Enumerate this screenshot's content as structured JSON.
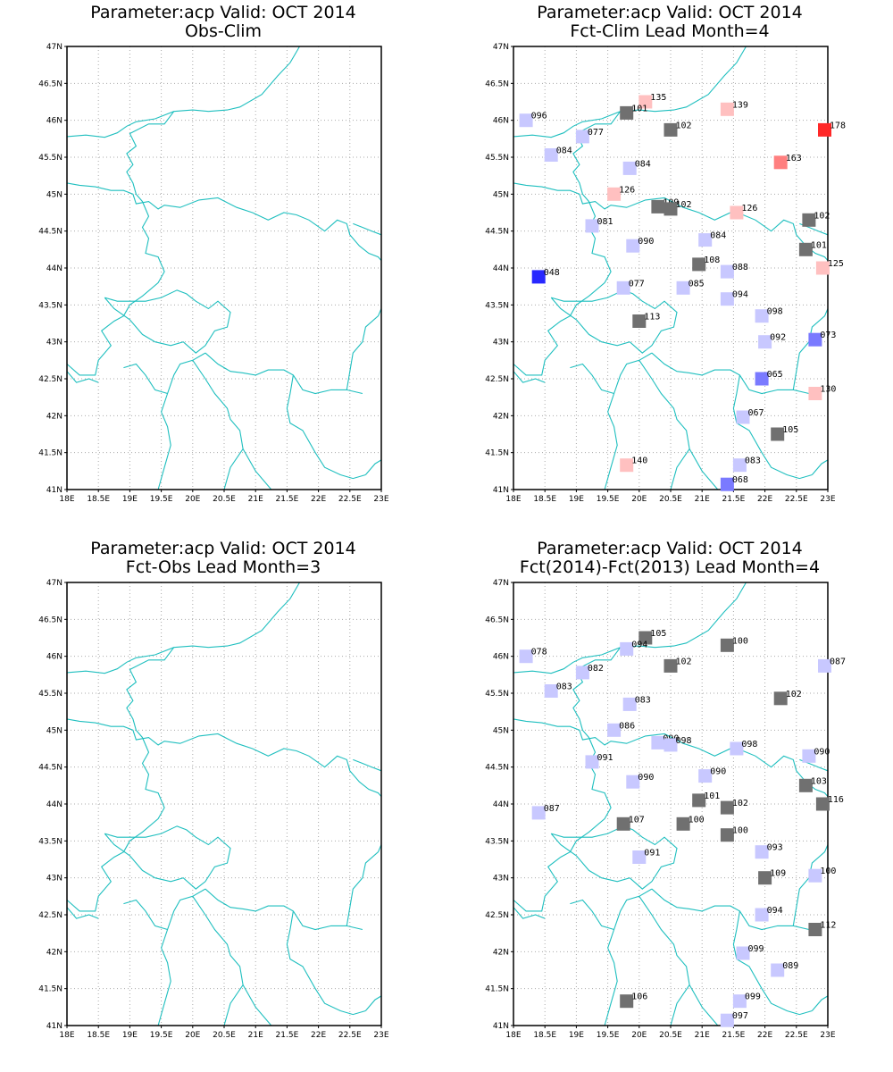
{
  "colors": {
    "border": "#1fbfbf",
    "grid": "#aaaaaa",
    "gray": "#707070",
    "light_blue": "#c8c8ff",
    "mid_blue": "#7a7aff",
    "dark_blue": "#2828ff",
    "light_pink": "#ffc0c0",
    "salmon": "#ff7f7f",
    "red": "#ff2828"
  },
  "axes": {
    "lon_labels": [
      "18E",
      "18.5E",
      "19E",
      "19.5E",
      "20E",
      "20.5E",
      "21E",
      "21.5E",
      "22E",
      "22.5E",
      "23E"
    ],
    "lat_labels": [
      "41N",
      "41.5N",
      "42N",
      "42.5N",
      "43N",
      "43.5N",
      "44N",
      "44.5N",
      "45N",
      "45.5N",
      "46N",
      "46.5N",
      "47N"
    ],
    "lon_range": [
      18,
      23
    ],
    "lat_range": [
      41,
      47
    ]
  },
  "panels": [
    {
      "title_line1": "Parameter:acp Valid: OCT 2014",
      "title_line2": "Obs-Clim",
      "stations": []
    },
    {
      "title_line1": "Parameter:acp Valid: OCT 2014",
      "title_line2": "Fct-Clim Lead Month=4",
      "stations": [
        {
          "lon": 18.2,
          "lat": 46.0,
          "label": "096",
          "color": "light_blue"
        },
        {
          "lon": 20.1,
          "lat": 46.25,
          "label": "135",
          "color": "light_pink"
        },
        {
          "lon": 19.8,
          "lat": 46.1,
          "label": "101",
          "color": "gray"
        },
        {
          "lon": 20.5,
          "lat": 45.87,
          "label": "102",
          "color": "gray"
        },
        {
          "lon": 21.4,
          "lat": 46.15,
          "label": "139",
          "color": "light_pink"
        },
        {
          "lon": 22.95,
          "lat": 45.87,
          "label": "178",
          "color": "red"
        },
        {
          "lon": 19.1,
          "lat": 45.78,
          "label": "077",
          "color": "light_blue"
        },
        {
          "lon": 18.6,
          "lat": 45.53,
          "label": "084",
          "color": "light_blue"
        },
        {
          "lon": 19.85,
          "lat": 45.35,
          "label": "084",
          "color": "light_blue"
        },
        {
          "lon": 22.25,
          "lat": 45.43,
          "label": "163",
          "color": "salmon"
        },
        {
          "lon": 19.6,
          "lat": 45.0,
          "label": "126",
          "color": "light_pink"
        },
        {
          "lon": 20.3,
          "lat": 44.83,
          "label": "109",
          "color": "gray"
        },
        {
          "lon": 20.5,
          "lat": 44.8,
          "label": "102",
          "color": "gray"
        },
        {
          "lon": 21.55,
          "lat": 44.75,
          "label": "126",
          "color": "light_pink"
        },
        {
          "lon": 22.7,
          "lat": 44.65,
          "label": "102",
          "color": "gray"
        },
        {
          "lon": 19.25,
          "lat": 44.57,
          "label": "081",
          "color": "light_blue"
        },
        {
          "lon": 19.9,
          "lat": 44.3,
          "label": "090",
          "color": "light_blue"
        },
        {
          "lon": 21.05,
          "lat": 44.38,
          "label": "084",
          "color": "light_blue"
        },
        {
          "lon": 22.65,
          "lat": 44.25,
          "label": "101",
          "color": "gray"
        },
        {
          "lon": 18.4,
          "lat": 43.88,
          "label": "048",
          "color": "dark_blue"
        },
        {
          "lon": 20.95,
          "lat": 44.05,
          "label": "108",
          "color": "gray"
        },
        {
          "lon": 21.4,
          "lat": 43.95,
          "label": "088",
          "color": "light_blue"
        },
        {
          "lon": 22.92,
          "lat": 44.0,
          "label": "125",
          "color": "light_pink"
        },
        {
          "lon": 19.75,
          "lat": 43.73,
          "label": "077",
          "color": "light_blue"
        },
        {
          "lon": 20.7,
          "lat": 43.73,
          "label": "085",
          "color": "light_blue"
        },
        {
          "lon": 21.4,
          "lat": 43.58,
          "label": "094",
          "color": "light_blue"
        },
        {
          "lon": 20.0,
          "lat": 43.28,
          "label": "113",
          "color": "gray"
        },
        {
          "lon": 21.95,
          "lat": 43.35,
          "label": "098",
          "color": "light_blue"
        },
        {
          "lon": 22.0,
          "lat": 43.0,
          "label": "092",
          "color": "light_blue"
        },
        {
          "lon": 22.8,
          "lat": 43.03,
          "label": "073",
          "color": "mid_blue"
        },
        {
          "lon": 21.95,
          "lat": 42.5,
          "label": "065",
          "color": "mid_blue"
        },
        {
          "lon": 22.8,
          "lat": 42.3,
          "label": "130",
          "color": "light_pink"
        },
        {
          "lon": 21.65,
          "lat": 41.98,
          "label": "067",
          "color": "light_blue"
        },
        {
          "lon": 22.2,
          "lat": 41.75,
          "label": "105",
          "color": "gray"
        },
        {
          "lon": 19.8,
          "lat": 41.33,
          "label": "140",
          "color": "light_pink"
        },
        {
          "lon": 21.6,
          "lat": 41.33,
          "label": "083",
          "color": "light_blue"
        },
        {
          "lon": 21.4,
          "lat": 41.07,
          "label": "068",
          "color": "mid_blue"
        }
      ]
    },
    {
      "title_line1": "Parameter:acp Valid: OCT 2014",
      "title_line2": "Fct-Obs Lead Month=3",
      "stations": []
    },
    {
      "title_line1": "Parameter:acp Valid: OCT 2014",
      "title_line2": "Fct(2014)-Fct(2013) Lead Month=4",
      "stations": [
        {
          "lon": 18.2,
          "lat": 46.0,
          "label": "078",
          "color": "light_blue"
        },
        {
          "lon": 20.1,
          "lat": 46.25,
          "label": "105",
          "color": "gray"
        },
        {
          "lon": 19.8,
          "lat": 46.1,
          "label": "094",
          "color": "light_blue"
        },
        {
          "lon": 20.5,
          "lat": 45.87,
          "label": "102",
          "color": "gray"
        },
        {
          "lon": 21.4,
          "lat": 46.15,
          "label": "100",
          "color": "gray"
        },
        {
          "lon": 22.95,
          "lat": 45.87,
          "label": "087",
          "color": "light_blue"
        },
        {
          "lon": 19.1,
          "lat": 45.78,
          "label": "082",
          "color": "light_blue"
        },
        {
          "lon": 18.6,
          "lat": 45.53,
          "label": "083",
          "color": "light_blue"
        },
        {
          "lon": 19.85,
          "lat": 45.35,
          "label": "083",
          "color": "light_blue"
        },
        {
          "lon": 22.25,
          "lat": 45.43,
          "label": "102",
          "color": "gray"
        },
        {
          "lon": 19.6,
          "lat": 45.0,
          "label": "086",
          "color": "light_blue"
        },
        {
          "lon": 20.3,
          "lat": 44.83,
          "label": "090",
          "color": "light_blue"
        },
        {
          "lon": 20.5,
          "lat": 44.8,
          "label": "098",
          "color": "light_blue"
        },
        {
          "lon": 21.55,
          "lat": 44.75,
          "label": "098",
          "color": "light_blue"
        },
        {
          "lon": 22.7,
          "lat": 44.65,
          "label": "090",
          "color": "light_blue"
        },
        {
          "lon": 19.25,
          "lat": 44.57,
          "label": "091",
          "color": "light_blue"
        },
        {
          "lon": 19.9,
          "lat": 44.3,
          "label": "090",
          "color": "light_blue"
        },
        {
          "lon": 21.05,
          "lat": 44.38,
          "label": "090",
          "color": "light_blue"
        },
        {
          "lon": 22.65,
          "lat": 44.25,
          "label": "103",
          "color": "gray"
        },
        {
          "lon": 18.4,
          "lat": 43.88,
          "label": "087",
          "color": "light_blue"
        },
        {
          "lon": 20.95,
          "lat": 44.05,
          "label": "101",
          "color": "gray"
        },
        {
          "lon": 21.4,
          "lat": 43.95,
          "label": "102",
          "color": "gray"
        },
        {
          "lon": 22.92,
          "lat": 44.0,
          "label": "116",
          "color": "gray"
        },
        {
          "lon": 19.75,
          "lat": 43.73,
          "label": "107",
          "color": "gray"
        },
        {
          "lon": 20.7,
          "lat": 43.73,
          "label": "100",
          "color": "gray"
        },
        {
          "lon": 21.4,
          "lat": 43.58,
          "label": "100",
          "color": "gray"
        },
        {
          "lon": 20.0,
          "lat": 43.28,
          "label": "091",
          "color": "light_blue"
        },
        {
          "lon": 21.95,
          "lat": 43.35,
          "label": "093",
          "color": "light_blue"
        },
        {
          "lon": 22.0,
          "lat": 43.0,
          "label": "109",
          "color": "gray"
        },
        {
          "lon": 22.8,
          "lat": 43.03,
          "label": "100",
          "color": "light_blue"
        },
        {
          "lon": 21.95,
          "lat": 42.5,
          "label": "094",
          "color": "light_blue"
        },
        {
          "lon": 22.8,
          "lat": 42.3,
          "label": "112",
          "color": "gray"
        },
        {
          "lon": 21.65,
          "lat": 41.98,
          "label": "099",
          "color": "light_blue"
        },
        {
          "lon": 22.2,
          "lat": 41.75,
          "label": "089",
          "color": "light_blue"
        },
        {
          "lon": 19.8,
          "lat": 41.33,
          "label": "106",
          "color": "gray"
        },
        {
          "lon": 21.6,
          "lat": 41.33,
          "label": "099",
          "color": "light_blue"
        },
        {
          "lon": 21.4,
          "lat": 41.07,
          "label": "097",
          "color": "light_blue"
        }
      ]
    }
  ]
}
